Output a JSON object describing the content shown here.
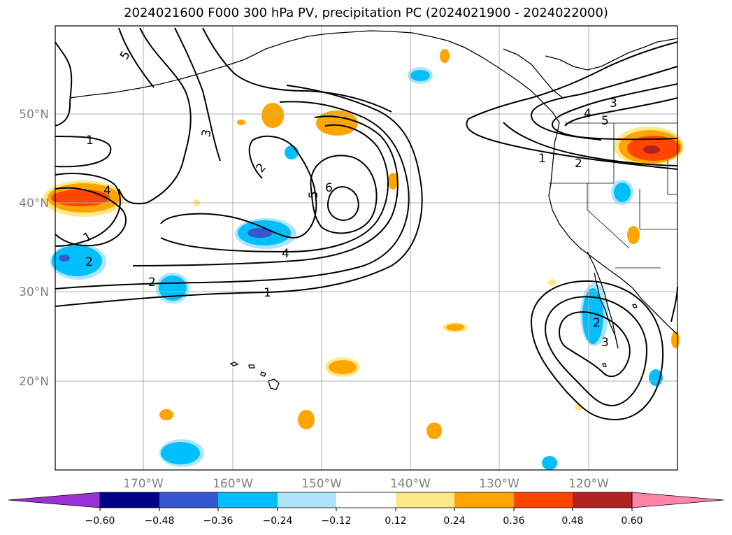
{
  "title": "2024021600 F000 300 hPa PV, precipitation PC (2024021900 - 2024022000)",
  "map": {
    "lon_labels": [
      "170°W",
      "160°W",
      "150°W",
      "140°W",
      "130°W",
      "120°W"
    ],
    "lat_labels": [
      "50°N",
      "40°N",
      "30°N",
      "20°N"
    ],
    "contour_labels": [
      "5",
      "3",
      "2",
      "5",
      "6",
      "4",
      "4",
      "1",
      "2",
      "2",
      "1",
      "4",
      "3",
      "5",
      "1",
      "2",
      "2",
      "3",
      "1"
    ]
  },
  "colorbar": {
    "ticks": [
      "−0.60",
      "−0.48",
      "−0.36",
      "−0.24",
      "−0.12",
      "0.12",
      "0.24",
      "0.36",
      "0.48",
      "0.60"
    ],
    "colors": [
      "#9b30d6",
      "#00008b",
      "#3558d0",
      "#00bfff",
      "#aee4fb",
      "#ffffff",
      "#fde98a",
      "#ffa500",
      "#ff4500",
      "#b22222",
      "#ff85a8"
    ]
  },
  "colors": {
    "grid": "#b0b0b0",
    "contour": "#000000",
    "coast": "#000000"
  }
}
